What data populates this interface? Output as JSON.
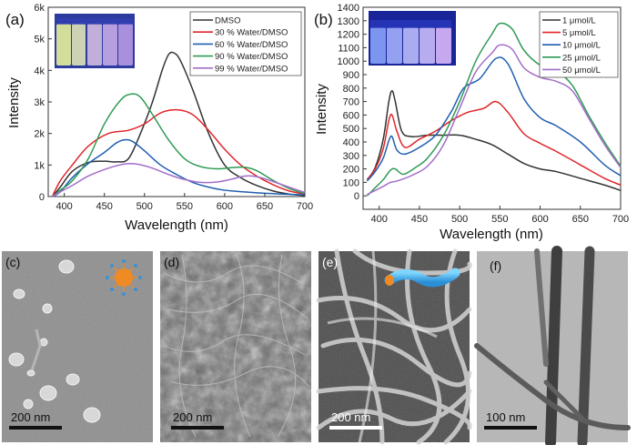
{
  "chart_data": [
    {
      "panel": "(a)",
      "type": "line",
      "xlabel": "Wavelength (nm)",
      "ylabel": "Intensity",
      "xlim": [
        380,
        700
      ],
      "ylim": [
        0,
        6000
      ],
      "xticks": [
        400,
        450,
        500,
        550,
        600,
        650,
        700
      ],
      "yticks": [
        {
          "v": 0,
          "t": "0"
        },
        {
          "v": 1000,
          "t": "1k"
        },
        {
          "v": 2000,
          "t": "2k"
        },
        {
          "v": 3000,
          "t": "3k"
        },
        {
          "v": 4000,
          "t": "4k"
        },
        {
          "v": 5000,
          "t": "5k"
        },
        {
          "v": 6000,
          "t": "6k"
        }
      ],
      "legend_position": "top-right",
      "series": [
        {
          "name": "DMSO",
          "color": "#333333",
          "points": [
            [
              385,
              0
            ],
            [
              395,
              300
            ],
            [
              410,
              800
            ],
            [
              430,
              1080
            ],
            [
              450,
              1120
            ],
            [
              465,
              1100
            ],
            [
              480,
              1200
            ],
            [
              495,
              2000
            ],
            [
              510,
              3000
            ],
            [
              522,
              4000
            ],
            [
              530,
              4500
            ],
            [
              537,
              4550
            ],
            [
              545,
              4300
            ],
            [
              560,
              3400
            ],
            [
              580,
              2000
            ],
            [
              600,
              1000
            ],
            [
              620,
              600
            ],
            [
              640,
              350
            ],
            [
              660,
              180
            ],
            [
              680,
              80
            ],
            [
              700,
              30
            ]
          ]
        },
        {
          "name": "30 % Water/DMSO",
          "color": "#e0262b",
          "points": [
            [
              385,
              0
            ],
            [
              395,
              500
            ],
            [
              410,
              1000
            ],
            [
              430,
              1600
            ],
            [
              455,
              2000
            ],
            [
              480,
              2100
            ],
            [
              500,
              2300
            ],
            [
              520,
              2650
            ],
            [
              540,
              2750
            ],
            [
              560,
              2600
            ],
            [
              580,
              2100
            ],
            [
              600,
              1500
            ],
            [
              620,
              1000
            ],
            [
              640,
              650
            ],
            [
              660,
              380
            ],
            [
              680,
              180
            ],
            [
              700,
              80
            ]
          ]
        },
        {
          "name": "60 % Water/DMSO",
          "color": "#1f5fb0",
          "points": [
            [
              385,
              0
            ],
            [
              395,
              150
            ],
            [
              410,
              600
            ],
            [
              430,
              1050
            ],
            [
              450,
              1400
            ],
            [
              465,
              1700
            ],
            [
              475,
              1800
            ],
            [
              485,
              1750
            ],
            [
              500,
              1450
            ],
            [
              520,
              1000
            ],
            [
              540,
              700
            ],
            [
              560,
              450
            ],
            [
              580,
              300
            ],
            [
              600,
              200
            ],
            [
              640,
              120
            ],
            [
              700,
              50
            ]
          ]
        },
        {
          "name": "90 % Water/DMSO",
          "color": "#2f9a55",
          "points": [
            [
              385,
              0
            ],
            [
              395,
              200
            ],
            [
              410,
              500
            ],
            [
              430,
              1200
            ],
            [
              450,
              2300
            ],
            [
              470,
              3050
            ],
            [
              483,
              3250
            ],
            [
              495,
              3150
            ],
            [
              510,
              2600
            ],
            [
              530,
              1800
            ],
            [
              550,
              1200
            ],
            [
              570,
              950
            ],
            [
              590,
              880
            ],
            [
              610,
              920
            ],
            [
              625,
              930
            ],
            [
              640,
              820
            ],
            [
              660,
              520
            ],
            [
              680,
              260
            ],
            [
              700,
              90
            ]
          ]
        },
        {
          "name": "99 % Water/DMSO",
          "color": "#a36dc9",
          "points": [
            [
              385,
              0
            ],
            [
              395,
              150
            ],
            [
              410,
              350
            ],
            [
              430,
              650
            ],
            [
              455,
              900
            ],
            [
              475,
              1030
            ],
            [
              490,
              1030
            ],
            [
              510,
              900
            ],
            [
              530,
              700
            ],
            [
              550,
              540
            ],
            [
              570,
              450
            ],
            [
              590,
              460
            ],
            [
              610,
              560
            ],
            [
              625,
              650
            ],
            [
              640,
              630
            ],
            [
              660,
              480
            ],
            [
              680,
              300
            ],
            [
              700,
              130
            ]
          ]
        }
      ]
    },
    {
      "panel": "(b)",
      "type": "line",
      "xlabel": "Wavelength (nm)",
      "ylabel": "Intensity",
      "xlim": [
        380,
        700
      ],
      "ylim": [
        -100,
        1400
      ],
      "xticks": [
        400,
        450,
        500,
        550,
        600,
        650,
        700
      ],
      "yticks": [
        {
          "v": 0,
          "t": "0"
        },
        {
          "v": 100,
          "t": "100"
        },
        {
          "v": 200,
          "t": "200"
        },
        {
          "v": 300,
          "t": "300"
        },
        {
          "v": 400,
          "t": "400"
        },
        {
          "v": 500,
          "t": "500"
        },
        {
          "v": 600,
          "t": "600"
        },
        {
          "v": 700,
          "t": "700"
        },
        {
          "v": 800,
          "t": "800"
        },
        {
          "v": 900,
          "t": "900"
        },
        {
          "v": 1000,
          "t": "1000"
        },
        {
          "v": 1100,
          "t": "1100"
        },
        {
          "v": 1200,
          "t": "1200"
        },
        {
          "v": 1300,
          "t": "1300"
        },
        {
          "v": 1400,
          "t": "1400"
        }
      ],
      "legend_position": "top-right",
      "series": [
        {
          "name": "1 μmol/L",
          "color": "#333333",
          "points": [
            [
              385,
              120
            ],
            [
              395,
              210
            ],
            [
              405,
              420
            ],
            [
              412,
              700
            ],
            [
              416,
              780
            ],
            [
              420,
              700
            ],
            [
              428,
              480
            ],
            [
              440,
              440
            ],
            [
              460,
              450
            ],
            [
              480,
              450
            ],
            [
              500,
              450
            ],
            [
              520,
              420
            ],
            [
              540,
              380
            ],
            [
              560,
              310
            ],
            [
              580,
              240
            ],
            [
              600,
              200
            ],
            [
              620,
              180
            ],
            [
              650,
              130
            ],
            [
              680,
              80
            ],
            [
              700,
              40
            ]
          ]
        },
        {
          "name": "5 μmol/L",
          "color": "#e0262b",
          "points": [
            [
              385,
              120
            ],
            [
              395,
              200
            ],
            [
              405,
              350
            ],
            [
              412,
              560
            ],
            [
              416,
              600
            ],
            [
              422,
              480
            ],
            [
              432,
              360
            ],
            [
              450,
              420
            ],
            [
              470,
              480
            ],
            [
              490,
              560
            ],
            [
              510,
              620
            ],
            [
              530,
              650
            ],
            [
              545,
              700
            ],
            [
              560,
              620
            ],
            [
              580,
              460
            ],
            [
              600,
              390
            ],
            [
              620,
              330
            ],
            [
              650,
              230
            ],
            [
              680,
              130
            ],
            [
              700,
              80
            ]
          ]
        },
        {
          "name": "10 μmol/L",
          "color": "#1f5fb0",
          "points": [
            [
              385,
              110
            ],
            [
              395,
              180
            ],
            [
              405,
              280
            ],
            [
              412,
              410
            ],
            [
              416,
              440
            ],
            [
              422,
              340
            ],
            [
              432,
              310
            ],
            [
              450,
              360
            ],
            [
              470,
              450
            ],
            [
              490,
              630
            ],
            [
              505,
              800
            ],
            [
              525,
              870
            ],
            [
              545,
              1020
            ],
            [
              560,
              980
            ],
            [
              580,
              720
            ],
            [
              600,
              580
            ],
            [
              620,
              520
            ],
            [
              650,
              400
            ],
            [
              680,
              230
            ],
            [
              700,
              150
            ]
          ]
        },
        {
          "name": "25 μmol/L",
          "color": "#2f9a55",
          "points": [
            [
              385,
              0
            ],
            [
              395,
              60
            ],
            [
              405,
              120
            ],
            [
              414,
              190
            ],
            [
              420,
              200
            ],
            [
              430,
              160
            ],
            [
              445,
              210
            ],
            [
              460,
              280
            ],
            [
              480,
              450
            ],
            [
              500,
              700
            ],
            [
              520,
              1000
            ],
            [
              540,
              1200
            ],
            [
              550,
              1280
            ],
            [
              565,
              1240
            ],
            [
              580,
              1080
            ],
            [
              600,
              970
            ],
            [
              620,
              930
            ],
            [
              640,
              820
            ],
            [
              660,
              600
            ],
            [
              680,
              400
            ],
            [
              700,
              220
            ]
          ]
        },
        {
          "name": "50 μmol/L",
          "color": "#a36dc9",
          "points": [
            [
              385,
              10
            ],
            [
              395,
              40
            ],
            [
              405,
              70
            ],
            [
              414,
              100
            ],
            [
              422,
              110
            ],
            [
              440,
              150
            ],
            [
              460,
              220
            ],
            [
              480,
              380
            ],
            [
              500,
              650
            ],
            [
              520,
              920
            ],
            [
              540,
              1060
            ],
            [
              550,
              1120
            ],
            [
              565,
              1090
            ],
            [
              580,
              950
            ],
            [
              600,
              880
            ],
            [
              620,
              850
            ],
            [
              640,
              780
            ],
            [
              660,
              580
            ],
            [
              680,
              380
            ],
            [
              700,
              210
            ]
          ]
        }
      ]
    }
  ],
  "figure": {
    "panel_a_label": "(a)",
    "panel_b_label": "(b)",
    "sem_panels": [
      {
        "label": "(c)",
        "scale": "200 nm"
      },
      {
        "label": "(d)",
        "scale": "200 nm"
      },
      {
        "label": "(e)",
        "scale": "200 nm"
      },
      {
        "label": "(f)",
        "scale": "100 nm"
      }
    ]
  }
}
